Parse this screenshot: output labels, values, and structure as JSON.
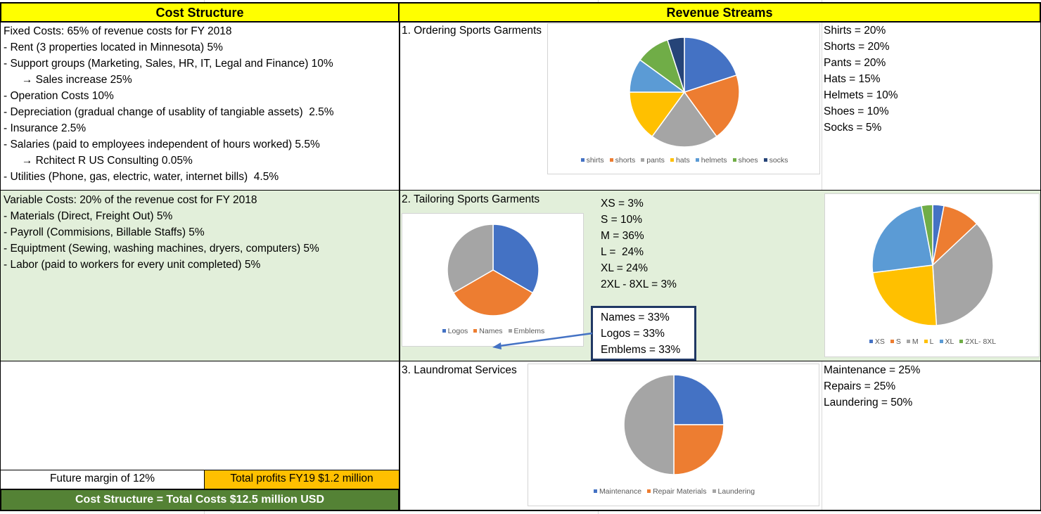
{
  "cost_structure": {
    "header": "Cost Structure",
    "fixed_lines": [
      "Fixed Costs: 65% of revenue costs for FY 2018",
      "- Rent (3 properties located in Minnesota) 5%",
      "- Support groups (Marketing, Sales, HR, IT, Legal and Finance) 10%",
      "      → Sales increase 25%",
      "- Operation Costs 10%",
      "- Depreciation (gradual change of usablity of tangiable assets)  2.5%",
      "- Insurance 2.5%",
      "- Salaries (paid to employees independent of hours worked) 5.5%",
      "      → Rchitect R US Consulting 0.05%",
      "- Utilities (Phone, gas, electric, water, internet bills)  4.5%"
    ],
    "variable_lines": [
      "Variable Costs: 20% of the revenue cost for FY 2018",
      "- Materials (Direct, Freight Out) 5%",
      "- Payroll (Commisions, Billable Staffs) 5%",
      "- Equiptment (Sewing, washing machines, dryers, computers) 5%",
      "- Labor (paid to workers for every unit completed) 5%"
    ],
    "future_margin": "Future margin of 12%",
    "total_profits": "Total profits FY19 $1.2 million",
    "total_costs": "Cost Structure = Total Costs $12.5 million USD"
  },
  "revenue_streams": {
    "header": "Revenue Streams",
    "ordering": {
      "title": "1. Ordering Sports Garments",
      "lines": [
        "Shirts = 20%",
        "Shorts = 20%",
        "Pants = 20%",
        "Hats = 15%",
        "Helmets = 10%",
        "Shoes = 10%",
        "Socks = 5%"
      ]
    },
    "tailoring": {
      "title": "2. Tailoring Sports Garments",
      "size_lines": [
        "XS = 3%",
        "S = 10%",
        "M = 36%",
        "L =  24%",
        "XL = 24%",
        "2XL - 8XL = 3%"
      ],
      "boxed_lines": [
        "Names = 33%",
        "Logos = 33%",
        "Emblems = 33%"
      ]
    },
    "laundromat": {
      "title": "3. Laundromat Services",
      "lines": [
        "Maintenance = 25%",
        "Repairs = 25%",
        "Laundering = 50%"
      ]
    }
  },
  "colors": {
    "blue": "#4472c4",
    "orange": "#ed7d31",
    "gray": "#a5a5a5",
    "yellow": "#ffc000",
    "lightblue": "#5b9bd5",
    "green": "#70ad47",
    "navy": "#264478",
    "header_yellow": "#ffff00",
    "footer_green": "#548235",
    "variable_bg": "#e2efda",
    "box_border": "#203864"
  },
  "chart_data": [
    {
      "type": "pie",
      "categories": [
        "shirts",
        "shorts",
        "pants",
        "hats",
        "helmets",
        "shoes",
        "socks"
      ],
      "values": [
        20,
        20,
        20,
        15,
        10,
        10,
        5
      ],
      "colors": [
        "#4472c4",
        "#ed7d31",
        "#a5a5a5",
        "#ffc000",
        "#5b9bd5",
        "#70ad47",
        "#264478"
      ],
      "legend": "bottom"
    },
    {
      "type": "pie",
      "categories": [
        "Logos",
        "Names",
        "Emblems"
      ],
      "values": [
        33,
        33,
        33
      ],
      "colors": [
        "#4472c4",
        "#ed7d31",
        "#a5a5a5"
      ],
      "legend": "bottom"
    },
    {
      "type": "pie",
      "categories": [
        "XS",
        "S",
        "M",
        "L",
        "XL",
        "2XL- 8XL"
      ],
      "values": [
        3,
        10,
        36,
        24,
        24,
        3
      ],
      "colors": [
        "#4472c4",
        "#ed7d31",
        "#a5a5a5",
        "#ffc000",
        "#5b9bd5",
        "#70ad47"
      ],
      "legend": "bottom"
    },
    {
      "type": "pie",
      "categories": [
        "Maintenance",
        "Repair Materials",
        "Laundering"
      ],
      "values": [
        25,
        25,
        50
      ],
      "colors": [
        "#4472c4",
        "#ed7d31",
        "#a5a5a5"
      ],
      "legend": "bottom"
    }
  ]
}
